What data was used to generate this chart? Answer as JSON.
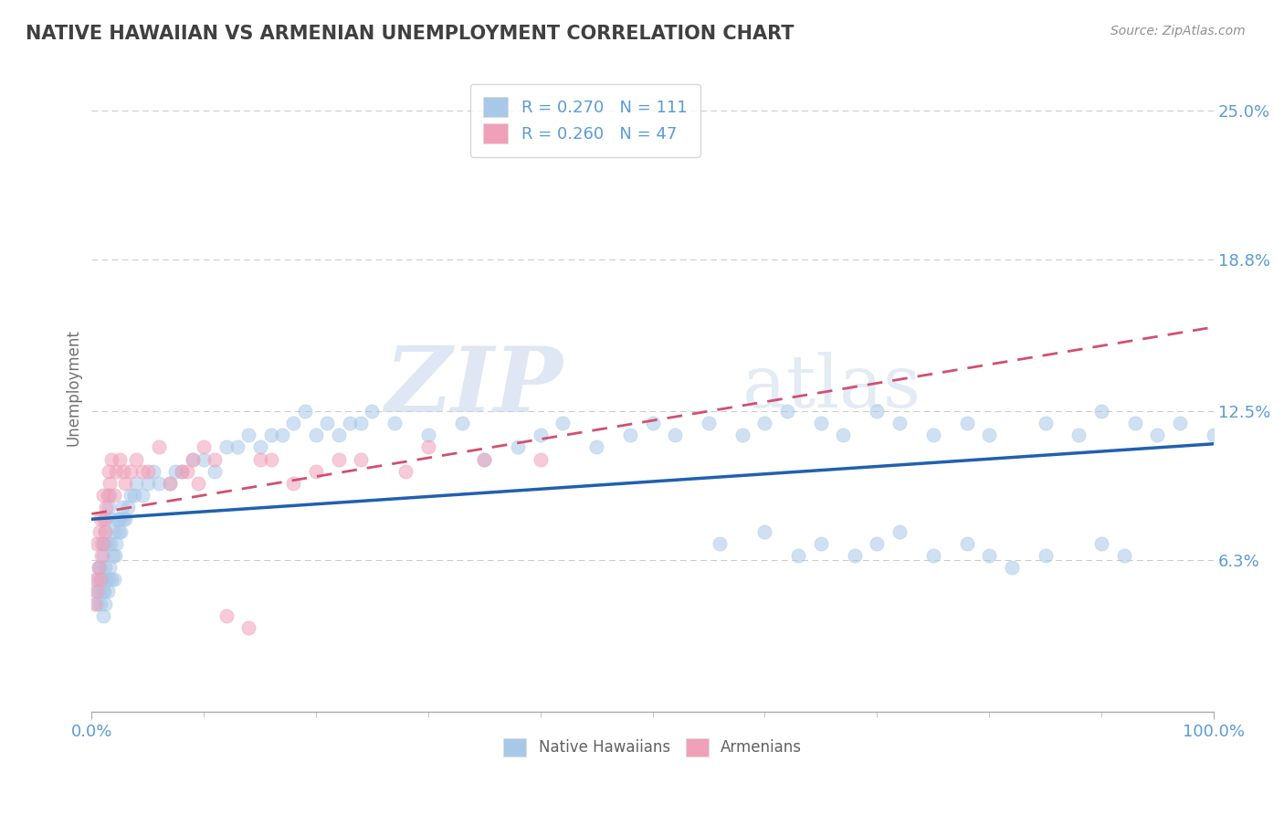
{
  "title": "NATIVE HAWAIIAN VS ARMENIAN UNEMPLOYMENT CORRELATION CHART",
  "source_text": "Source: ZipAtlas.com",
  "ylabel": "Unemployment",
  "xlim": [
    0,
    100
  ],
  "ylim": [
    0,
    27
  ],
  "xtick_labels": [
    "0.0%",
    "100.0%"
  ],
  "ytick_values": [
    6.3,
    12.5,
    18.8,
    25.0
  ],
  "ytick_labels": [
    "6.3%",
    "12.5%",
    "18.8%",
    "25.0%"
  ],
  "grid_color": "#cccccc",
  "watermark_zip": "ZIP",
  "watermark_atlas": "atlas",
  "legend_r1": "R = 0.270",
  "legend_n1": "N = 111",
  "legend_r2": "R = 0.260",
  "legend_n2": "N = 47",
  "color_blue": "#A8C8E8",
  "color_pink": "#F0A0B8",
  "color_blue_line": "#2060B0",
  "color_pink_line": "#D05070",
  "color_title": "#404040",
  "color_axis_labels": "#5B9BD5",
  "color_source": "#909090",
  "nh_x": [
    0.4,
    0.5,
    0.5,
    0.6,
    0.7,
    0.8,
    0.8,
    0.9,
    0.9,
    1.0,
    1.0,
    1.0,
    1.1,
    1.1,
    1.2,
    1.2,
    1.2,
    1.3,
    1.3,
    1.4,
    1.4,
    1.5,
    1.5,
    1.6,
    1.6,
    1.7,
    1.8,
    1.8,
    1.9,
    2.0,
    2.0,
    2.1,
    2.2,
    2.3,
    2.4,
    2.5,
    2.6,
    2.7,
    2.8,
    3.0,
    3.2,
    3.5,
    3.8,
    4.0,
    4.5,
    5.0,
    5.5,
    6.0,
    7.0,
    7.5,
    8.0,
    9.0,
    10.0,
    11.0,
    12.0,
    13.0,
    14.0,
    15.0,
    16.0,
    17.0,
    18.0,
    19.0,
    20.0,
    21.0,
    22.0,
    23.0,
    24.0,
    25.0,
    27.0,
    30.0,
    33.0,
    35.0,
    38.0,
    40.0,
    42.0,
    45.0,
    48.0,
    50.0,
    52.0,
    55.0,
    58.0,
    60.0,
    62.0,
    65.0,
    67.0,
    70.0,
    72.0,
    75.0,
    78.0,
    80.0,
    85.0,
    88.0,
    90.0,
    93.0,
    95.0,
    97.0,
    100.0,
    56.0,
    60.0,
    63.0,
    65.0,
    68.0,
    70.0,
    72.0,
    75.0,
    78.0,
    80.0,
    82.0,
    85.0,
    90.0,
    92.0
  ],
  "nh_y": [
    5.0,
    4.5,
    5.5,
    6.0,
    5.0,
    4.5,
    6.0,
    5.5,
    7.0,
    4.0,
    5.0,
    6.5,
    5.0,
    7.0,
    4.5,
    6.0,
    7.5,
    5.5,
    8.0,
    5.0,
    7.0,
    5.5,
    8.5,
    6.0,
    9.0,
    7.0,
    5.5,
    8.0,
    6.5,
    5.5,
    7.5,
    6.5,
    7.0,
    8.0,
    7.5,
    8.0,
    7.5,
    8.5,
    8.0,
    8.0,
    8.5,
    9.0,
    9.0,
    9.5,
    9.0,
    9.5,
    10.0,
    9.5,
    9.5,
    10.0,
    10.0,
    10.5,
    10.5,
    10.0,
    11.0,
    11.0,
    11.5,
    11.0,
    11.5,
    11.5,
    12.0,
    12.5,
    11.5,
    12.0,
    11.5,
    12.0,
    12.0,
    12.5,
    12.0,
    11.5,
    12.0,
    10.5,
    11.0,
    11.5,
    12.0,
    11.0,
    11.5,
    12.0,
    11.5,
    12.0,
    11.5,
    12.0,
    12.5,
    12.0,
    11.5,
    12.5,
    12.0,
    11.5,
    12.0,
    11.5,
    12.0,
    11.5,
    12.5,
    12.0,
    11.5,
    12.0,
    11.5,
    7.0,
    7.5,
    6.5,
    7.0,
    6.5,
    7.0,
    7.5,
    6.5,
    7.0,
    6.5,
    6.0,
    6.5,
    7.0,
    6.5
  ],
  "arm_x": [
    0.3,
    0.4,
    0.5,
    0.5,
    0.6,
    0.7,
    0.8,
    0.8,
    0.9,
    1.0,
    1.0,
    1.1,
    1.2,
    1.3,
    1.4,
    1.5,
    1.6,
    1.8,
    2.0,
    2.2,
    2.5,
    2.8,
    3.0,
    3.5,
    4.0,
    4.5,
    5.0,
    6.0,
    7.0,
    8.0,
    9.0,
    10.0,
    12.0,
    14.0,
    16.0,
    18.0,
    20.0,
    22.0,
    24.0,
    28.0,
    30.0,
    35.0,
    40.0,
    8.5,
    9.5,
    11.0,
    15.0
  ],
  "arm_y": [
    4.5,
    5.5,
    5.0,
    7.0,
    6.0,
    7.5,
    5.5,
    8.0,
    6.5,
    7.0,
    9.0,
    8.0,
    7.5,
    8.5,
    9.0,
    10.0,
    9.5,
    10.5,
    9.0,
    10.0,
    10.5,
    10.0,
    9.5,
    10.0,
    10.5,
    10.0,
    10.0,
    11.0,
    9.5,
    10.0,
    10.5,
    11.0,
    4.0,
    3.5,
    10.5,
    9.5,
    10.0,
    10.5,
    10.5,
    10.0,
    11.0,
    10.5,
    10.5,
    10.0,
    9.5,
    10.5,
    10.5
  ]
}
